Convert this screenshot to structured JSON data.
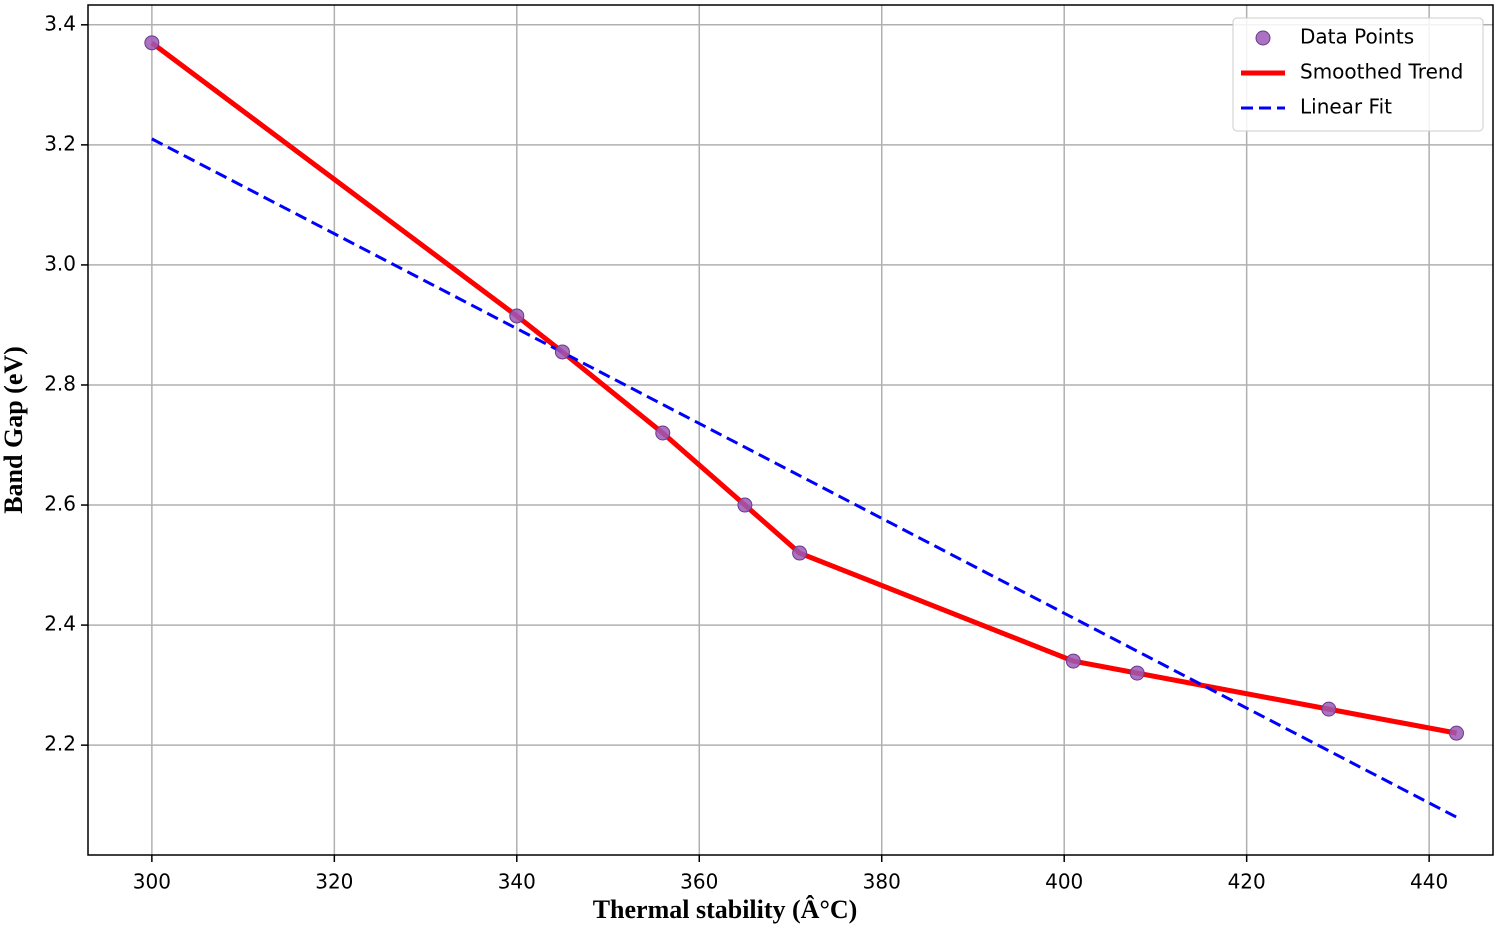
{
  "chart_data": {
    "type": "line",
    "x_label": "Thermal stability (Â°C)",
    "y_label": "Band Gap (eV)",
    "xlim": [
      293,
      447
    ],
    "ylim": [
      2.017,
      3.433
    ],
    "xticks": [
      300,
      320,
      340,
      360,
      380,
      400,
      420,
      440
    ],
    "yticks": [
      {
        "value": 2.2,
        "label": "2.2"
      },
      {
        "value": 2.4,
        "label": "2.4"
      },
      {
        "value": 2.6,
        "label": "2.6"
      },
      {
        "value": 2.8,
        "label": "2.8"
      },
      {
        "value": 3.0,
        "label": "3.0"
      },
      {
        "value": 3.2,
        "label": "3.2"
      },
      {
        "value": 3.4,
        "label": "3.4"
      }
    ],
    "grid": true,
    "legend": "upper right",
    "series": [
      {
        "name": "Data Points",
        "style": "markers",
        "color": "#9b59b6",
        "x": [
          300,
          340,
          345,
          356,
          365,
          371,
          401,
          408,
          429,
          443
        ],
        "values": [
          3.37,
          2.915,
          2.855,
          2.72,
          2.6,
          2.52,
          2.34,
          2.32,
          2.26,
          2.22
        ]
      },
      {
        "name": "Smoothed Trend",
        "style": "solid",
        "color": "#ff0000",
        "x": [
          300,
          340,
          345,
          356,
          365,
          371,
          401,
          408,
          429,
          443
        ],
        "values": [
          3.37,
          2.915,
          2.855,
          2.72,
          2.6,
          2.52,
          2.34,
          2.32,
          2.26,
          2.22
        ]
      },
      {
        "name": "Linear Fit",
        "style": "dashed",
        "color": "#0000ff",
        "x": [
          300,
          443
        ],
        "values": [
          3.21,
          2.08
        ]
      }
    ]
  }
}
